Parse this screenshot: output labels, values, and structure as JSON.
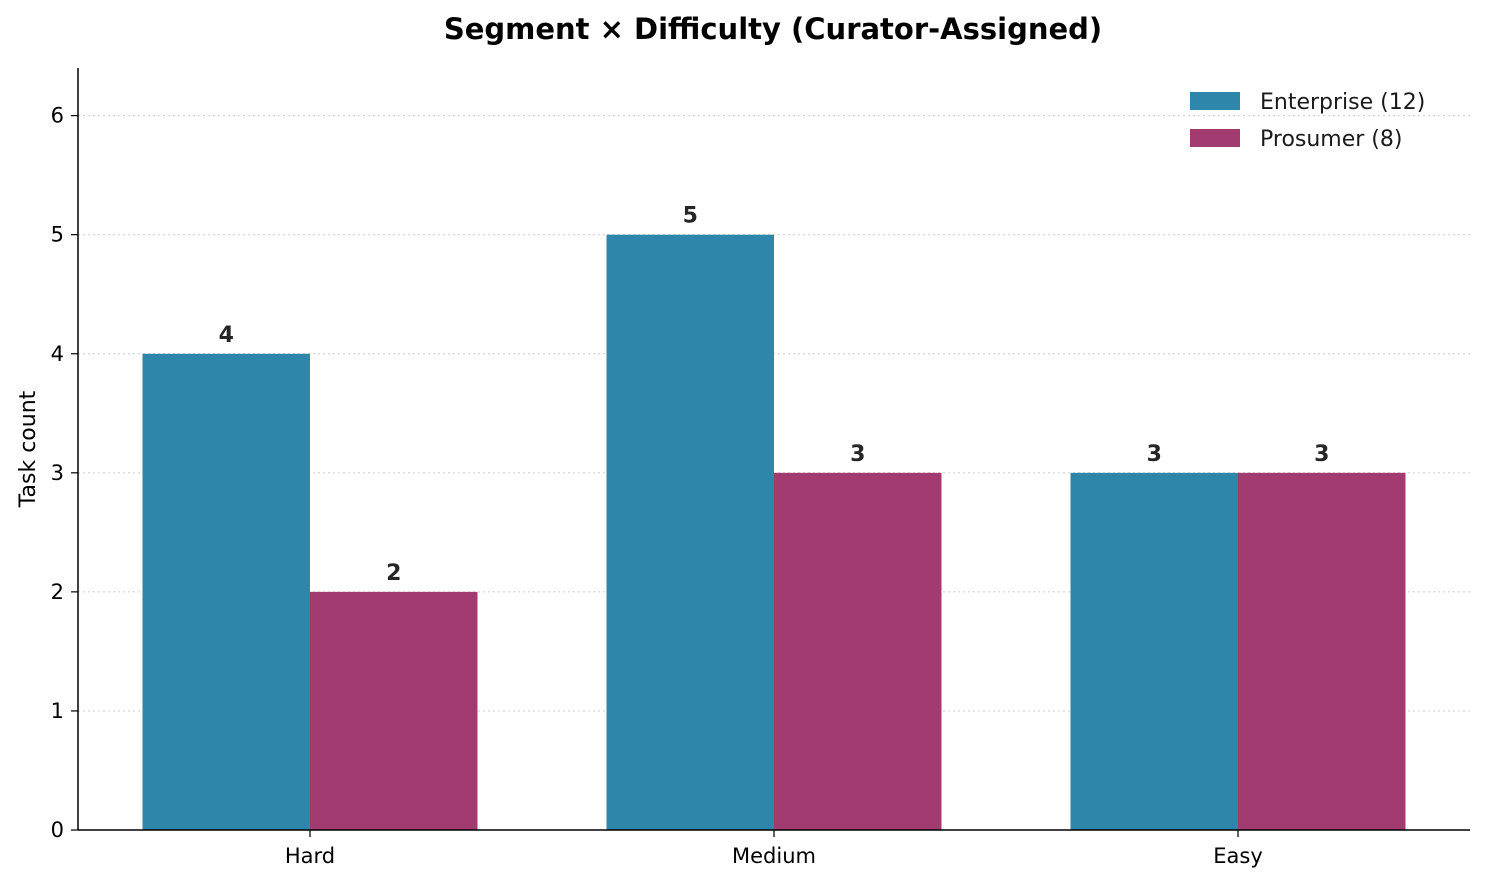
{
  "chart_data": {
    "type": "bar",
    "title": "Segment × Difficulty (Curator-Assigned)",
    "xlabel": "",
    "ylabel": "Task count",
    "categories": [
      "Hard",
      "Medium",
      "Easy"
    ],
    "series": [
      {
        "name": "Enterprise (12)",
        "color": "#2e86ab",
        "values": [
          4,
          5,
          3
        ]
      },
      {
        "name": "Prosumer (8)",
        "color": "#a23b6f",
        "values": [
          2,
          3,
          3
        ]
      }
    ],
    "ylim": [
      0,
      6.4
    ],
    "yticks": [
      0,
      1,
      2,
      3,
      4,
      5,
      6
    ],
    "grid": "horizontal dotted",
    "legend_position": "top-right",
    "data_labels": true
  }
}
